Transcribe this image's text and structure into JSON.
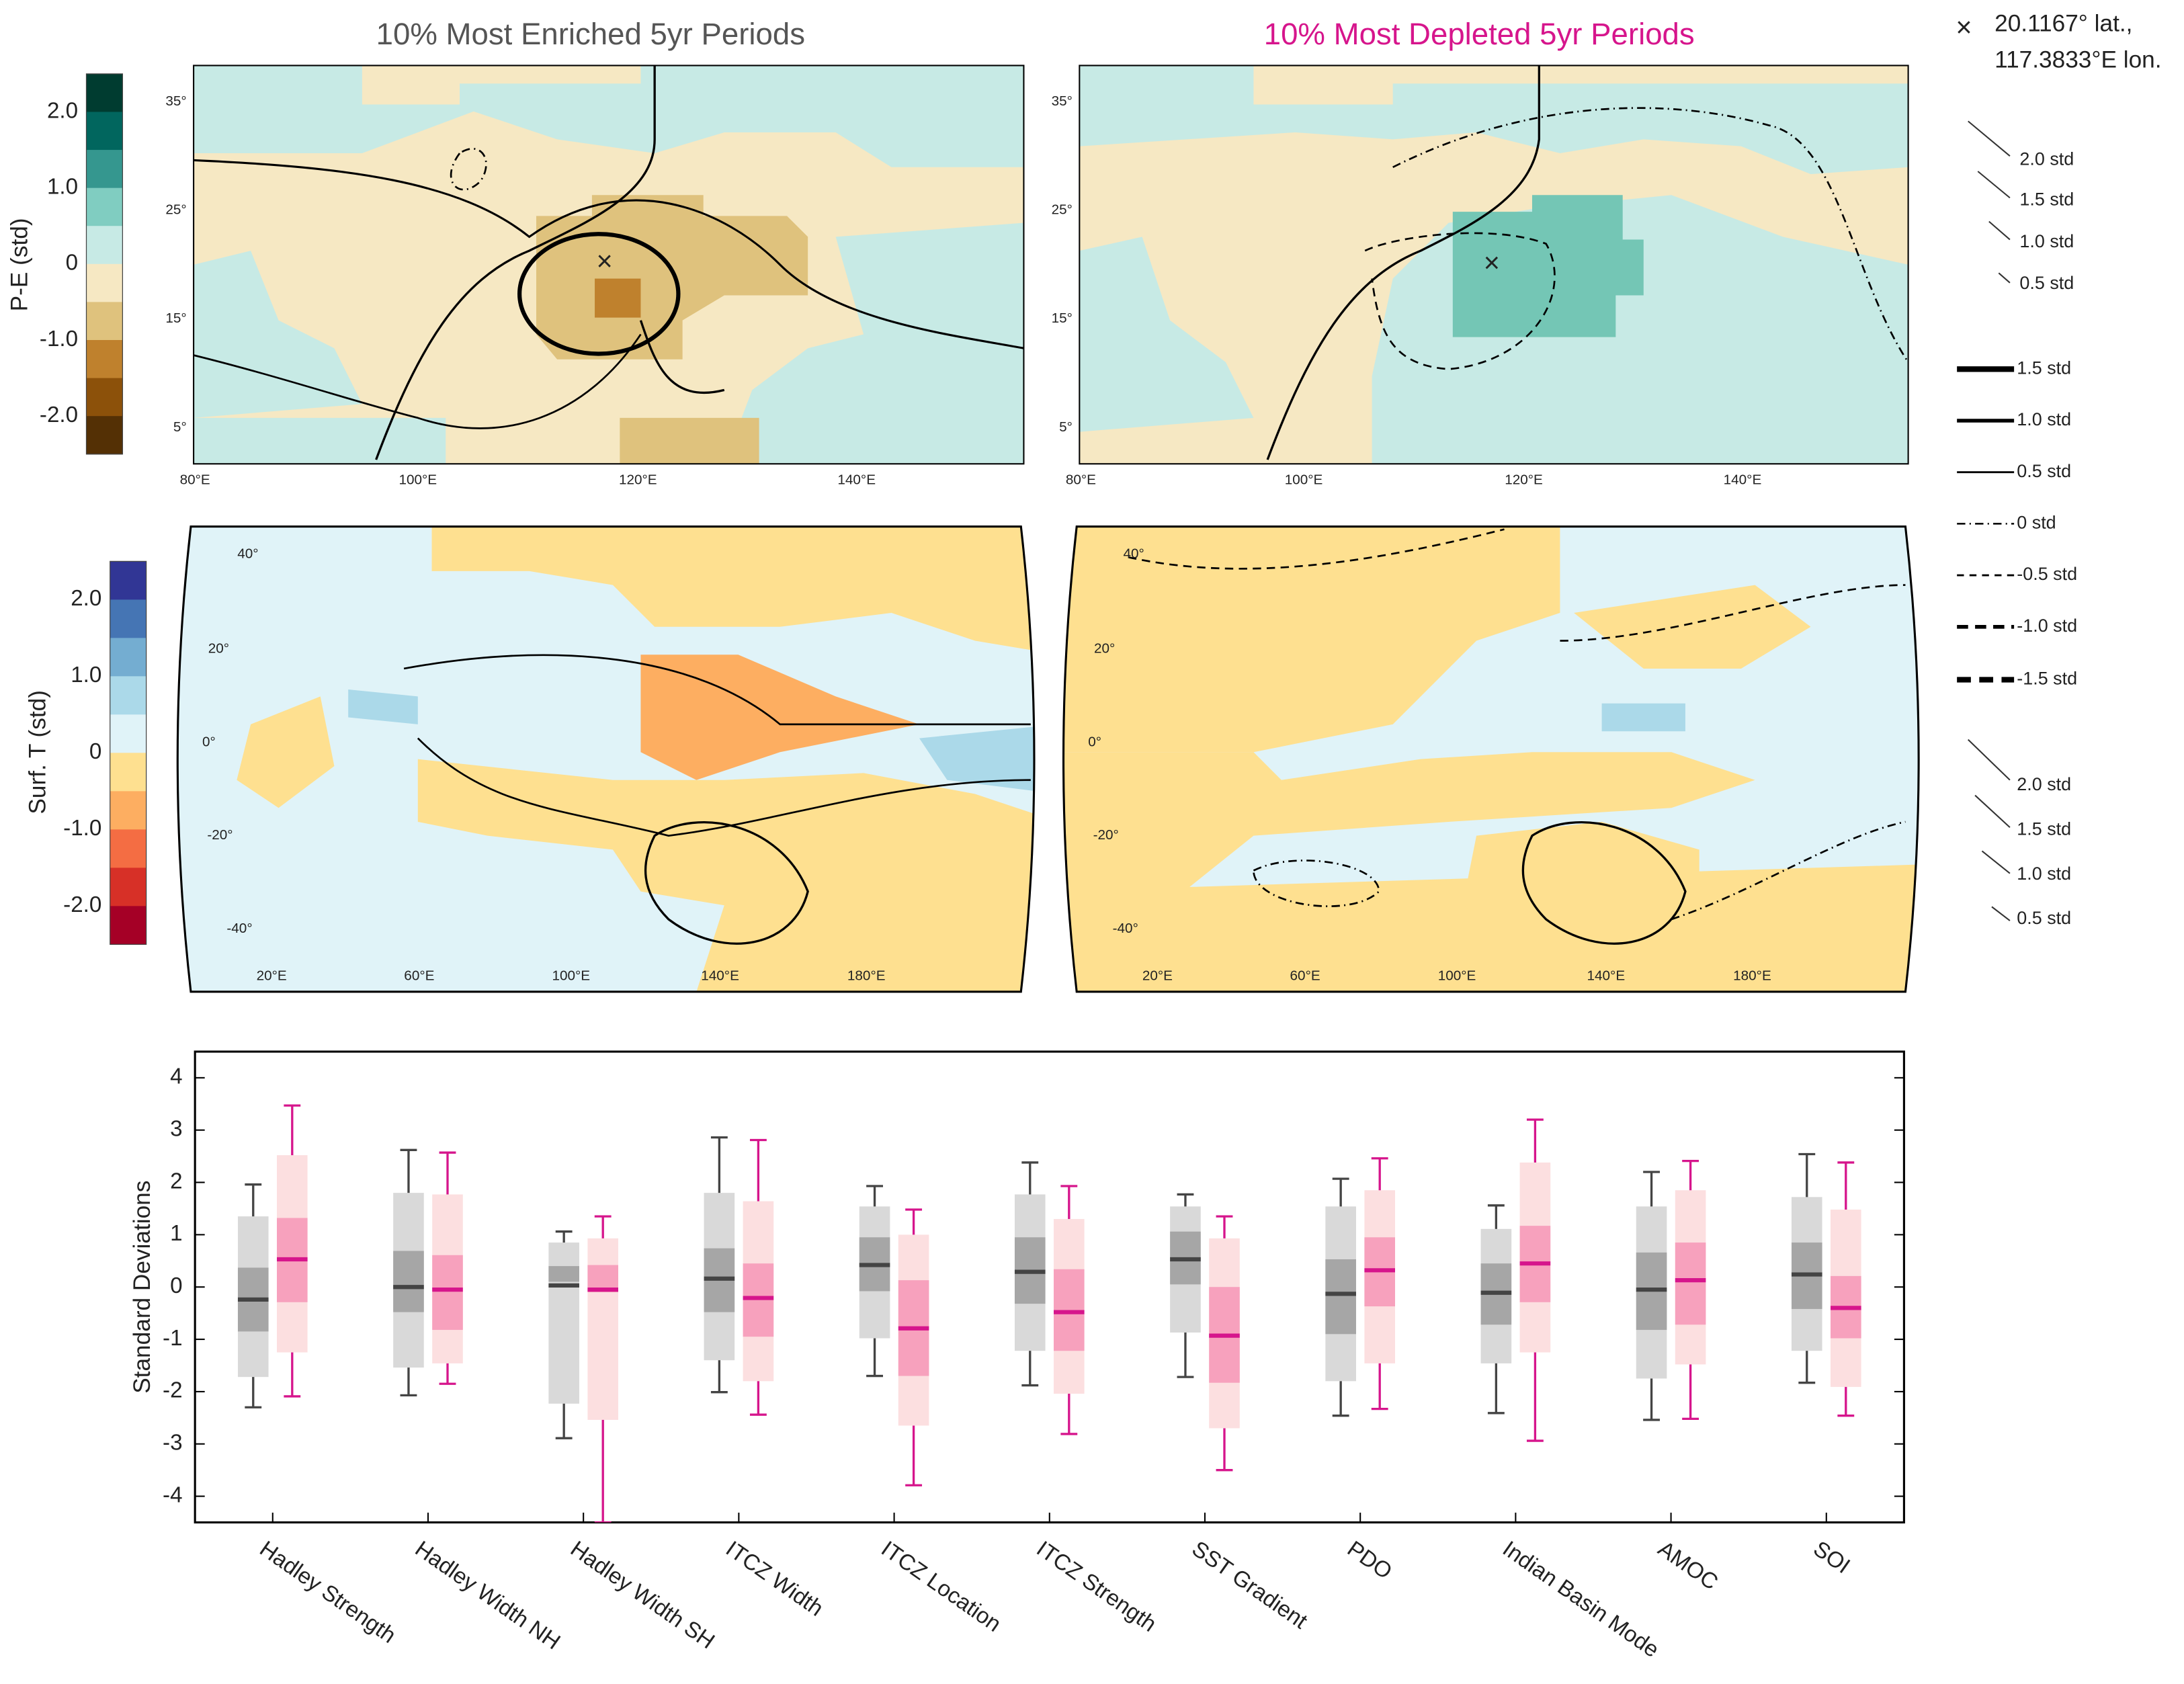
{
  "panel_titles": [
    "10% Most Enriched 5yr Periods",
    "10% Most Depleted 5yr Periods"
  ],
  "colorbars": [
    {
      "label": "P-E (std)",
      "ticks": [
        "2.0",
        "1.0",
        "0",
        "-1.0",
        "-2.0"
      ],
      "colors": [
        "#003c30",
        "#01665e",
        "#35978f",
        "#80cdc1",
        "#c7eae5",
        "#f6e8c3",
        "#dfc27d",
        "#bf812d",
        "#8c510a",
        "#543005"
      ]
    },
    {
      "label": "Surf. T (std)",
      "ticks": [
        "2.0",
        "1.0",
        "0",
        "-1.0",
        "-2.0"
      ],
      "colors": [
        "#313695",
        "#4575b4",
        "#74add1",
        "#abd9e9",
        "#e0f3f8",
        "#fee090",
        "#fdae61",
        "#f46d43",
        "#d73027",
        "#a50026"
      ]
    }
  ],
  "map_top": {
    "lat_labels": [
      "35°",
      "25°",
      "15°",
      "5°"
    ],
    "lon_labels": [
      "80°E",
      "100°E",
      "120°E",
      "140°E"
    ]
  },
  "map_bottom": {
    "lat_labels": [
      "40°",
      "20°",
      "0°",
      "-20°",
      "-40°"
    ],
    "lon_labels": [
      "20°E",
      "60°E",
      "100°E",
      "140°E",
      "180°E"
    ]
  },
  "legend": {
    "site": [
      "20.1167° lat.,",
      "117.3833°E lon."
    ],
    "vectors_top": [
      "2.0 std",
      "1.5 std",
      "1.0 std",
      "0.5 std"
    ],
    "contours": [
      "1.5 std",
      "1.0 std",
      "0.5 std",
      "0 std",
      "-0.5 std",
      "-1.0 std",
      "-1.5 std"
    ],
    "vectors_bottom": [
      "2.0 std",
      "1.5 std",
      "1.0 std",
      "0.5 std"
    ]
  },
  "chart_data": {
    "type": "box",
    "y_label": "Standard Deviations",
    "categories": [
      "Hadley Strength",
      "Hadley Width NH",
      "Hadley Width SH",
      "ITCZ Width",
      "ITCZ Location",
      "ITCZ Strength",
      "SST Gradient",
      "PDO",
      "Indian Basin Mode",
      "AMOC",
      "SOI"
    ],
    "ylim": [
      -4.5,
      4.5
    ],
    "yticks": [
      -4,
      -3,
      -2,
      -1,
      0,
      1,
      2,
      3,
      4
    ],
    "series": [
      {
        "color": "#444444",
        "outer_color": "#d9d9d9",
        "inner_color": "#a6a6a6",
        "whisker_low": [
          -2.3,
          -2.07,
          -2.89,
          -2.01,
          -1.7,
          -1.88,
          -1.72,
          -2.46,
          -2.41,
          -2.54,
          -1.83
        ],
        "outer_low": [
          -1.72,
          -1.54,
          -2.23,
          -1.4,
          -0.98,
          -1.22,
          -0.87,
          -1.8,
          -1.46,
          -1.75,
          -1.22
        ],
        "inner_low": [
          -0.85,
          -0.48,
          0.1,
          -0.48,
          -0.08,
          -0.32,
          0.05,
          -0.9,
          -0.72,
          -0.82,
          -0.42
        ],
        "median": [
          -0.24,
          0,
          0.03,
          0.16,
          0.42,
          0.29,
          0.53,
          -0.13,
          -0.11,
          -0.05,
          0.24
        ],
        "inner_high": [
          0.37,
          0.69,
          0.4,
          0.74,
          0.95,
          0.95,
          1.06,
          0.53,
          0.45,
          0.66,
          0.85
        ],
        "outer_high": [
          1.35,
          1.8,
          0.85,
          1.8,
          1.54,
          1.77,
          1.54,
          1.54,
          1.11,
          1.54,
          1.72
        ],
        "whisker_high": [
          1.96,
          2.62,
          1.06,
          2.86,
          1.93,
          2.38,
          1.77,
          2.07,
          1.56,
          2.2,
          2.54
        ]
      },
      {
        "color": "#d6158c",
        "outer_color": "#fcdfe0",
        "inner_color": "#f7a1bd",
        "whisker_low": [
          -2.09,
          -1.85,
          -4.5,
          -2.44,
          -3.79,
          -2.81,
          -3.5,
          -2.33,
          -2.94,
          -2.52,
          -2.46
        ],
        "outer_low": [
          -1.25,
          -1.46,
          -2.54,
          -1.8,
          -2.65,
          -2.04,
          -2.7,
          -1.46,
          -1.25,
          -1.48,
          -1.91
        ],
        "inner_low": [
          -0.29,
          -0.82,
          -0.1,
          -0.95,
          -1.7,
          -1.22,
          -1.83,
          -0.37,
          -0.29,
          -0.72,
          -0.98
        ],
        "median": [
          0.53,
          -0.05,
          -0.05,
          -0.21,
          -0.79,
          -0.48,
          -0.93,
          0.32,
          0.45,
          0.13,
          -0.4
        ],
        "inner_high": [
          1.32,
          0.61,
          0.42,
          0.45,
          0.13,
          0.34,
          0,
          0.95,
          1.17,
          0.85,
          0.21
        ],
        "outer_high": [
          2.52,
          1.77,
          0.93,
          1.64,
          1.0,
          1.3,
          0.93,
          1.85,
          2.38,
          1.85,
          1.48
        ],
        "whisker_high": [
          3.47,
          2.57,
          1.35,
          2.81,
          1.48,
          1.93,
          1.35,
          2.46,
          3.2,
          2.41,
          2.38
        ]
      }
    ]
  }
}
